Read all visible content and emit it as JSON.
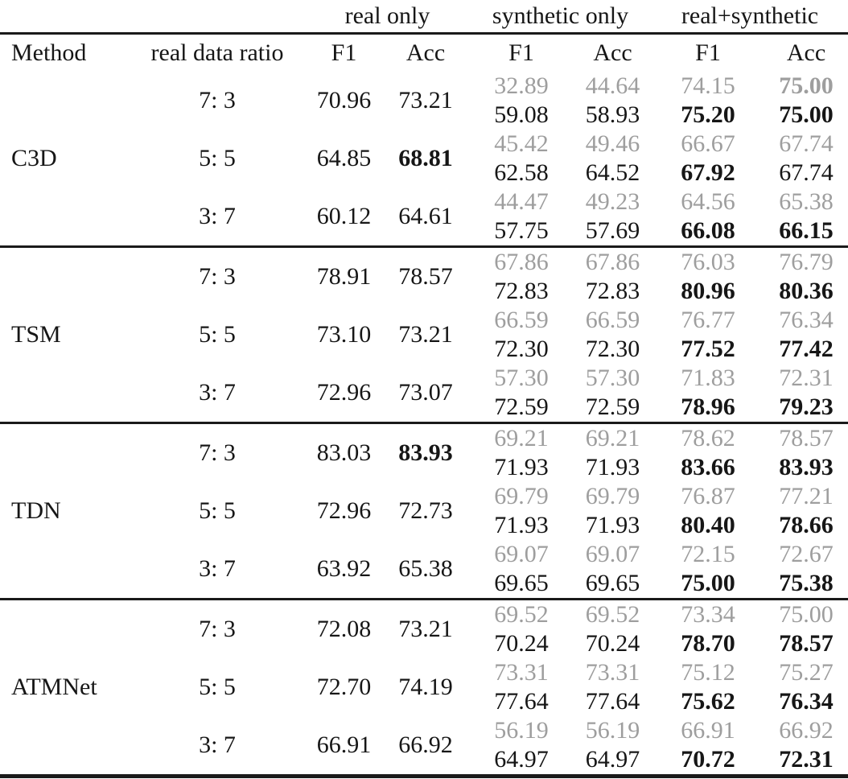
{
  "colors": {
    "gray_value": "#9e9e9e",
    "text": "#161616",
    "rule": "#1a1a1a",
    "background": "#ffffff"
  },
  "table": {
    "group_headers": [
      "real only",
      "synthetic only",
      "real+synthetic"
    ],
    "column_headers": {
      "method": "Method",
      "ratio": "real data ratio",
      "f1": "F1",
      "acc": "Acc"
    },
    "blocks": [
      {
        "method": "C3D",
        "rows": [
          {
            "ratio": "7: 3",
            "real_f1": {
              "v": "70.96",
              "b": false
            },
            "real_acc": {
              "v": "73.21",
              "b": false
            },
            "syn_f1": {
              "top": {
                "v": "32.89",
                "b": false
              },
              "bot": {
                "v": "59.08",
                "b": false
              }
            },
            "syn_acc": {
              "top": {
                "v": "44.64",
                "b": false
              },
              "bot": {
                "v": "58.93",
                "b": false
              }
            },
            "mix_f1": {
              "top": {
                "v": "74.15",
                "b": false
              },
              "bot": {
                "v": "75.20",
                "b": true
              }
            },
            "mix_acc": {
              "top": {
                "v": "75.00",
                "b": true
              },
              "bot": {
                "v": "75.00",
                "b": true
              }
            }
          },
          {
            "ratio": "5: 5",
            "real_f1": {
              "v": "64.85",
              "b": false
            },
            "real_acc": {
              "v": "68.81",
              "b": true
            },
            "syn_f1": {
              "top": {
                "v": "45.42",
                "b": false
              },
              "bot": {
                "v": "62.58",
                "b": false
              }
            },
            "syn_acc": {
              "top": {
                "v": "49.46",
                "b": false
              },
              "bot": {
                "v": "64.52",
                "b": false
              }
            },
            "mix_f1": {
              "top": {
                "v": "66.67",
                "b": false
              },
              "bot": {
                "v": "67.92",
                "b": true
              }
            },
            "mix_acc": {
              "top": {
                "v": "67.74",
                "b": false
              },
              "bot": {
                "v": "67.74",
                "b": false
              }
            }
          },
          {
            "ratio": "3: 7",
            "real_f1": {
              "v": "60.12",
              "b": false
            },
            "real_acc": {
              "v": "64.61",
              "b": false
            },
            "syn_f1": {
              "top": {
                "v": "44.47",
                "b": false
              },
              "bot": {
                "v": "57.75",
                "b": false
              }
            },
            "syn_acc": {
              "top": {
                "v": "49.23",
                "b": false
              },
              "bot": {
                "v": "57.69",
                "b": false
              }
            },
            "mix_f1": {
              "top": {
                "v": "64.56",
                "b": false
              },
              "bot": {
                "v": "66.08",
                "b": true
              }
            },
            "mix_acc": {
              "top": {
                "v": "65.38",
                "b": false
              },
              "bot": {
                "v": "66.15",
                "b": true
              }
            }
          }
        ]
      },
      {
        "method": "TSM",
        "rows": [
          {
            "ratio": "7: 3",
            "real_f1": {
              "v": "78.91",
              "b": false
            },
            "real_acc": {
              "v": "78.57",
              "b": false
            },
            "syn_f1": {
              "top": {
                "v": "67.86",
                "b": false
              },
              "bot": {
                "v": "72.83",
                "b": false
              }
            },
            "syn_acc": {
              "top": {
                "v": "67.86",
                "b": false
              },
              "bot": {
                "v": "72.83",
                "b": false
              }
            },
            "mix_f1": {
              "top": {
                "v": "76.03",
                "b": false
              },
              "bot": {
                "v": "80.96",
                "b": true
              }
            },
            "mix_acc": {
              "top": {
                "v": "76.79",
                "b": false
              },
              "bot": {
                "v": "80.36",
                "b": true
              }
            }
          },
          {
            "ratio": "5: 5",
            "real_f1": {
              "v": "73.10",
              "b": false
            },
            "real_acc": {
              "v": "73.21",
              "b": false
            },
            "syn_f1": {
              "top": {
                "v": "66.59",
                "b": false
              },
              "bot": {
                "v": "72.30",
                "b": false
              }
            },
            "syn_acc": {
              "top": {
                "v": "66.59",
                "b": false
              },
              "bot": {
                "v": "72.30",
                "b": false
              }
            },
            "mix_f1": {
              "top": {
                "v": "76.77",
                "b": false
              },
              "bot": {
                "v": "77.52",
                "b": true
              }
            },
            "mix_acc": {
              "top": {
                "v": "76.34",
                "b": false
              },
              "bot": {
                "v": "77.42",
                "b": true
              }
            }
          },
          {
            "ratio": "3: 7",
            "real_f1": {
              "v": "72.96",
              "b": false
            },
            "real_acc": {
              "v": "73.07",
              "b": false
            },
            "syn_f1": {
              "top": {
                "v": "57.30",
                "b": false
              },
              "bot": {
                "v": "72.59",
                "b": false
              }
            },
            "syn_acc": {
              "top": {
                "v": "57.30",
                "b": false
              },
              "bot": {
                "v": "72.59",
                "b": false
              }
            },
            "mix_f1": {
              "top": {
                "v": "71.83",
                "b": false
              },
              "bot": {
                "v": "78.96",
                "b": true
              }
            },
            "mix_acc": {
              "top": {
                "v": "72.31",
                "b": false
              },
              "bot": {
                "v": "79.23",
                "b": true
              }
            }
          }
        ]
      },
      {
        "method": "TDN",
        "rows": [
          {
            "ratio": "7: 3",
            "real_f1": {
              "v": "83.03",
              "b": false
            },
            "real_acc": {
              "v": "83.93",
              "b": true
            },
            "syn_f1": {
              "top": {
                "v": "69.21",
                "b": false
              },
              "bot": {
                "v": "71.93",
                "b": false
              }
            },
            "syn_acc": {
              "top": {
                "v": "69.21",
                "b": false
              },
              "bot": {
                "v": "71.93",
                "b": false
              }
            },
            "mix_f1": {
              "top": {
                "v": "78.62",
                "b": false
              },
              "bot": {
                "v": "83.66",
                "b": true
              }
            },
            "mix_acc": {
              "top": {
                "v": "78.57",
                "b": false
              },
              "bot": {
                "v": "83.93",
                "b": true
              }
            }
          },
          {
            "ratio": "5: 5",
            "real_f1": {
              "v": "72.96",
              "b": false
            },
            "real_acc": {
              "v": "72.73",
              "b": false
            },
            "syn_f1": {
              "top": {
                "v": "69.79",
                "b": false
              },
              "bot": {
                "v": "71.93",
                "b": false
              }
            },
            "syn_acc": {
              "top": {
                "v": "69.79",
                "b": false
              },
              "bot": {
                "v": "71.93",
                "b": false
              }
            },
            "mix_f1": {
              "top": {
                "v": "76.87",
                "b": false
              },
              "bot": {
                "v": "80.40",
                "b": true
              }
            },
            "mix_acc": {
              "top": {
                "v": "77.21",
                "b": false
              },
              "bot": {
                "v": "78.66",
                "b": true
              }
            }
          },
          {
            "ratio": "3: 7",
            "real_f1": {
              "v": "63.92",
              "b": false
            },
            "real_acc": {
              "v": "65.38",
              "b": false
            },
            "syn_f1": {
              "top": {
                "v": "69.07",
                "b": false
              },
              "bot": {
                "v": "69.65",
                "b": false
              }
            },
            "syn_acc": {
              "top": {
                "v": "69.07",
                "b": false
              },
              "bot": {
                "v": "69.65",
                "b": false
              }
            },
            "mix_f1": {
              "top": {
                "v": "72.15",
                "b": false
              },
              "bot": {
                "v": "75.00",
                "b": true
              }
            },
            "mix_acc": {
              "top": {
                "v": "72.67",
                "b": false
              },
              "bot": {
                "v": "75.38",
                "b": true
              }
            }
          }
        ]
      },
      {
        "method": "ATMNet",
        "rows": [
          {
            "ratio": "7: 3",
            "real_f1": {
              "v": "72.08",
              "b": false
            },
            "real_acc": {
              "v": "73.21",
              "b": false
            },
            "syn_f1": {
              "top": {
                "v": "69.52",
                "b": false
              },
              "bot": {
                "v": "70.24",
                "b": false
              }
            },
            "syn_acc": {
              "top": {
                "v": "69.52",
                "b": false
              },
              "bot": {
                "v": "70.24",
                "b": false
              }
            },
            "mix_f1": {
              "top": {
                "v": "73.34",
                "b": false
              },
              "bot": {
                "v": "78.70",
                "b": true
              }
            },
            "mix_acc": {
              "top": {
                "v": "75.00",
                "b": false
              },
              "bot": {
                "v": "78.57",
                "b": true
              }
            }
          },
          {
            "ratio": "5: 5",
            "real_f1": {
              "v": "72.70",
              "b": false
            },
            "real_acc": {
              "v": "74.19",
              "b": false
            },
            "syn_f1": {
              "top": {
                "v": "73.31",
                "b": false
              },
              "bot": {
                "v": "77.64",
                "b": false
              }
            },
            "syn_acc": {
              "top": {
                "v": "73.31",
                "b": false
              },
              "bot": {
                "v": "77.64",
                "b": false
              }
            },
            "mix_f1": {
              "top": {
                "v": "75.12",
                "b": false
              },
              "bot": {
                "v": "75.62",
                "b": true
              }
            },
            "mix_acc": {
              "top": {
                "v": "75.27",
                "b": false
              },
              "bot": {
                "v": "76.34",
                "b": true
              }
            }
          },
          {
            "ratio": "3: 7",
            "real_f1": {
              "v": "66.91",
              "b": false
            },
            "real_acc": {
              "v": "66.92",
              "b": false
            },
            "syn_f1": {
              "top": {
                "v": "56.19",
                "b": false
              },
              "bot": {
                "v": "64.97",
                "b": false
              }
            },
            "syn_acc": {
              "top": {
                "v": "56.19",
                "b": false
              },
              "bot": {
                "v": "64.97",
                "b": false
              }
            },
            "mix_f1": {
              "top": {
                "v": "66.91",
                "b": false
              },
              "bot": {
                "v": "70.72",
                "b": true
              }
            },
            "mix_acc": {
              "top": {
                "v": "66.92",
                "b": false
              },
              "bot": {
                "v": "72.31",
                "b": true
              }
            }
          }
        ]
      }
    ]
  }
}
